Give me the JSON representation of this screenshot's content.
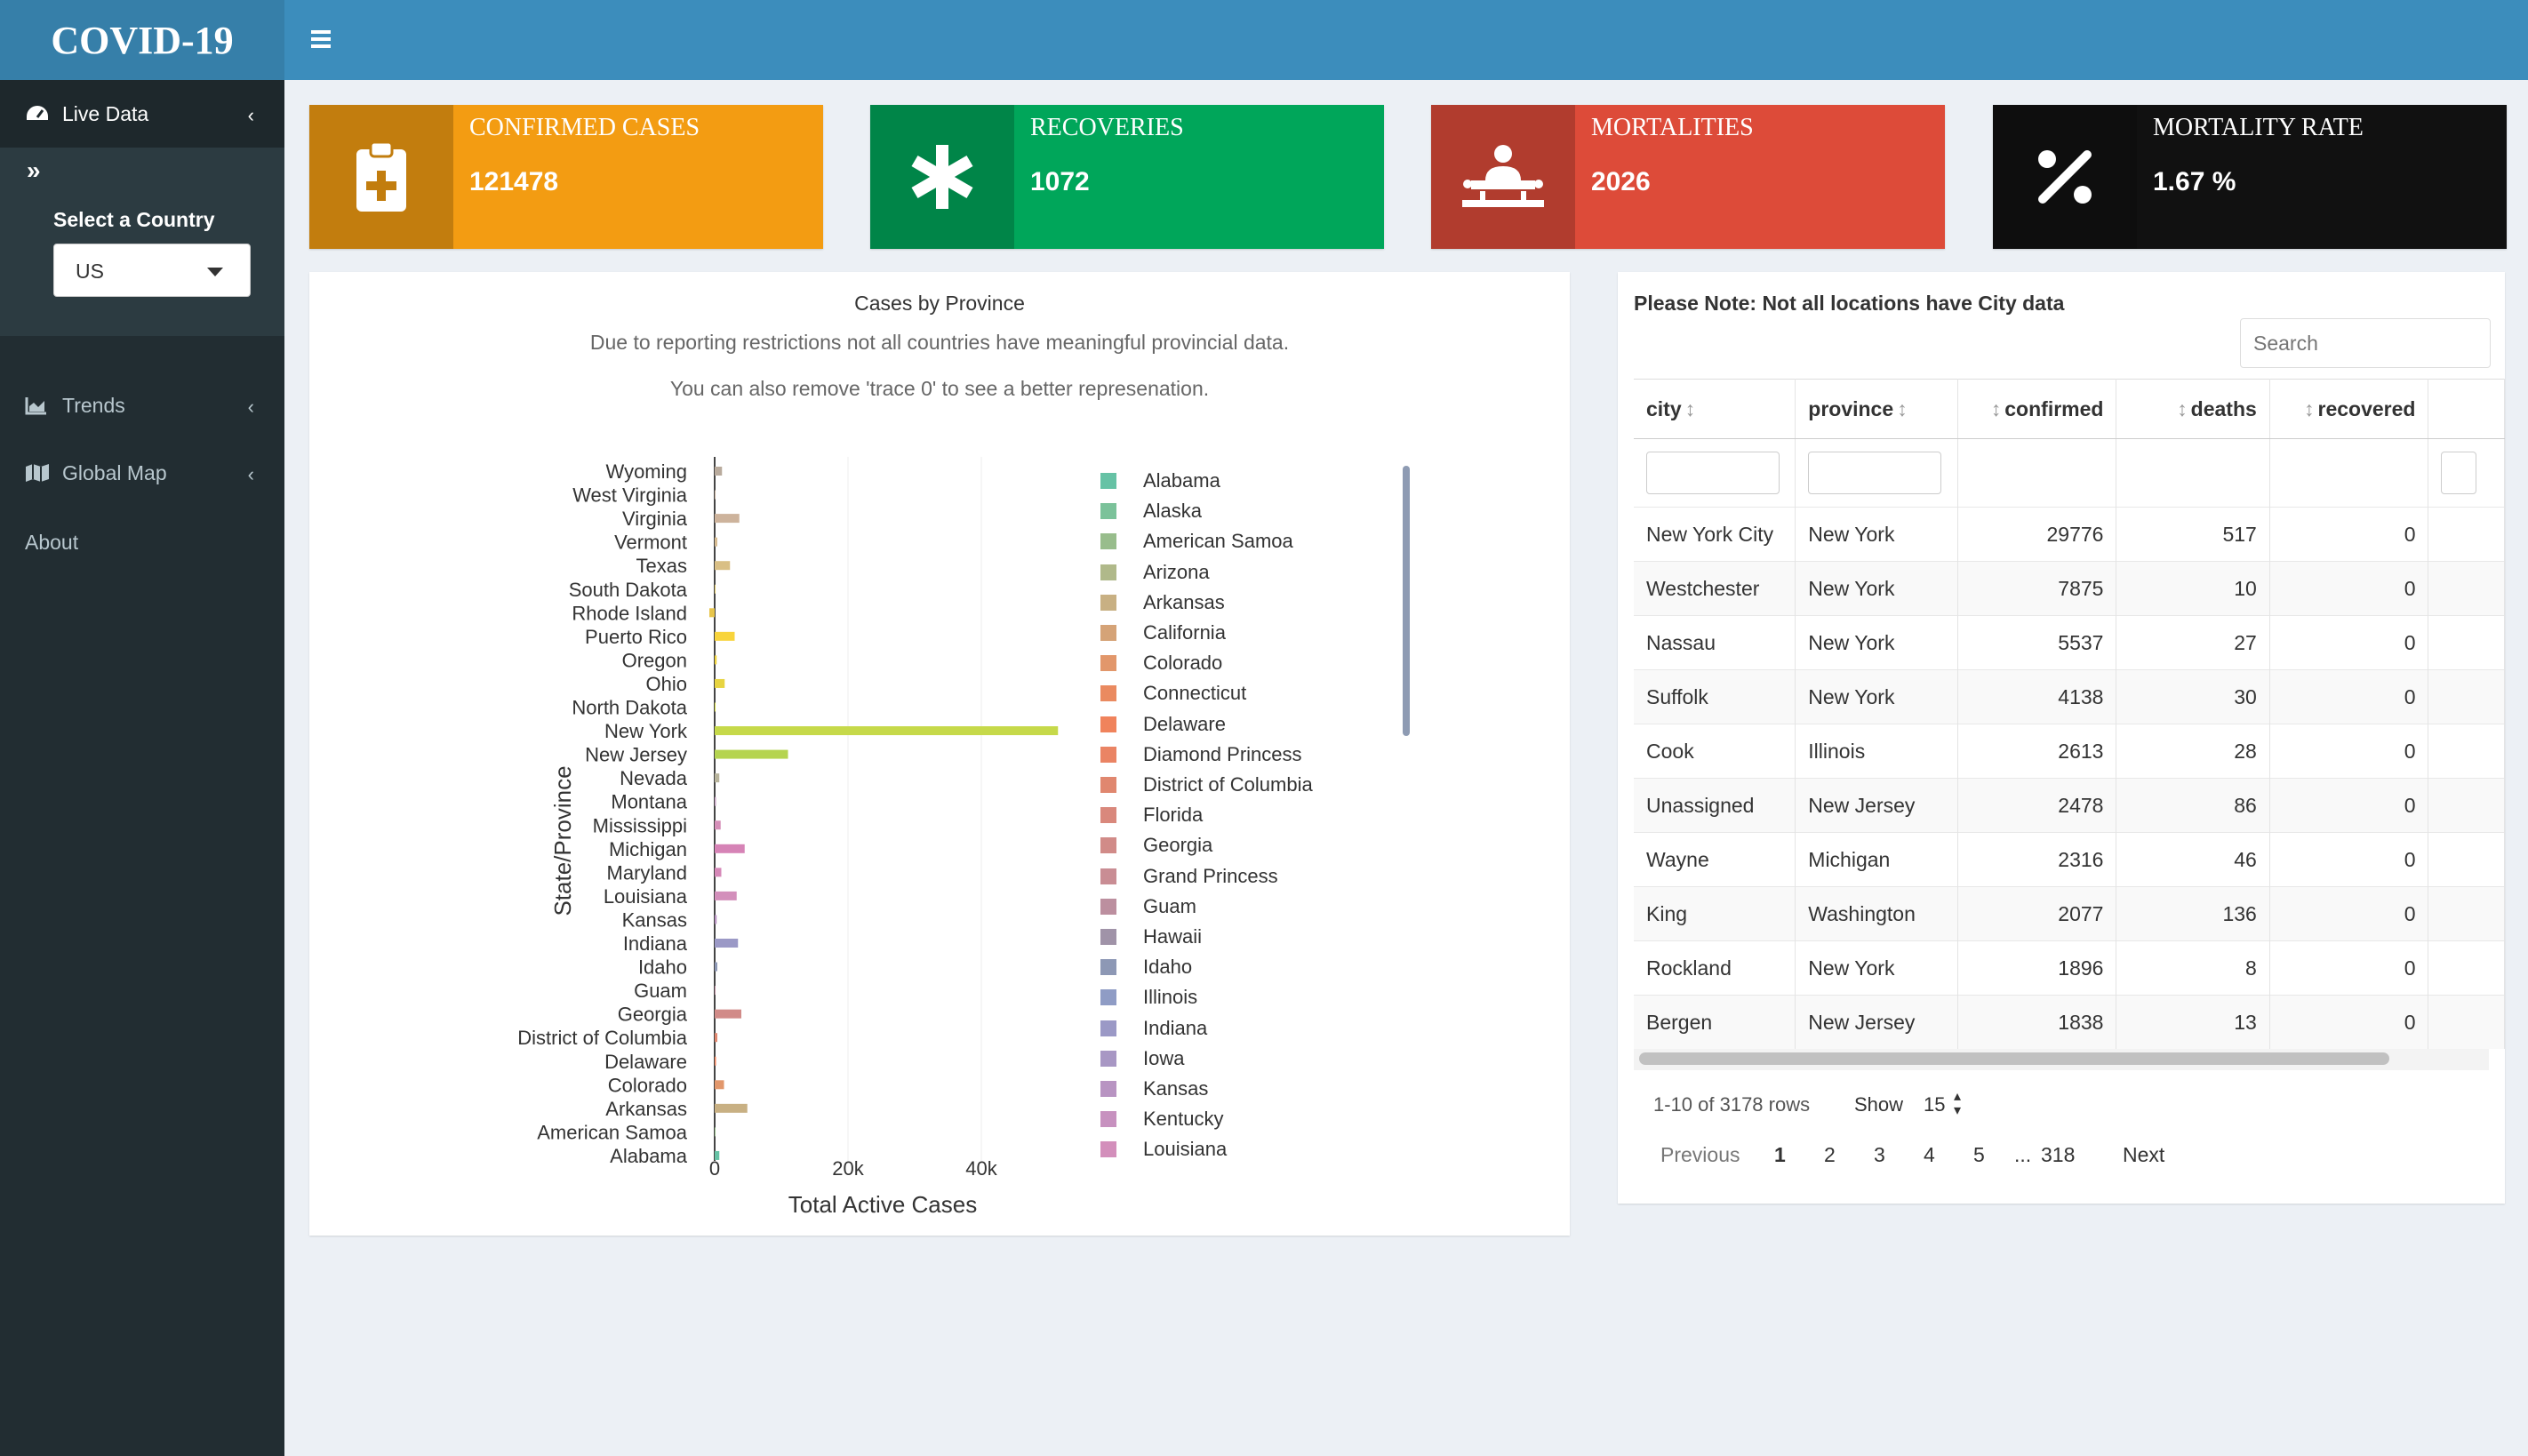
{
  "app": {
    "logo": "COVID-19"
  },
  "sidebar": {
    "live_data": "Live Data",
    "select_country_label": "Select a Country",
    "country": "US",
    "trends": "Trends",
    "global_map": "Global Map",
    "about": "About"
  },
  "valueboxes": {
    "confirmed": {
      "title": "CONFIRMED CASES",
      "value": "121478"
    },
    "recoveries": {
      "title": "RECOVERIES",
      "value": "1072"
    },
    "mortalities": {
      "title": "MORTALITIES",
      "value": "2026"
    },
    "rate": {
      "title": "MORTALITY RATE",
      "value": "1.67 %"
    }
  },
  "chart": {
    "title": "Cases by Province",
    "note1": "Due to reporting restrictions not all countries have meaningful provincial data.",
    "note2": "You can also remove 'trace 0' to see a better represenation."
  },
  "chart_data": {
    "type": "bar",
    "orientation": "horizontal",
    "xlabel": "Total Active Cases",
    "ylabel": "State/Province",
    "xlim": [
      0,
      60000
    ],
    "xticks": [
      "0",
      "20k",
      "40k"
    ],
    "categories": [
      "Alabama",
      "American Samoa",
      "Arkansas",
      "Colorado",
      "Delaware",
      "District of Columbia",
      "Georgia",
      "Guam",
      "Idaho",
      "Indiana",
      "Kansas",
      "Louisiana",
      "Maryland",
      "Michigan",
      "Mississippi",
      "Montana",
      "Nevada",
      "New Jersey",
      "New York",
      "North Dakota",
      "Ohio",
      "Oregon",
      "Puerto Rico",
      "Rhode Island",
      "South Dakota",
      "Texas",
      "Vermont",
      "Virginia",
      "West Virginia",
      "Wyoming"
    ],
    "values": [
      700,
      0,
      4900,
      1400,
      200,
      400,
      4000,
      50,
      400,
      3500,
      300,
      3300,
      1000,
      4500,
      900,
      200,
      700,
      11000,
      51500,
      100,
      1500,
      300,
      3000,
      -800,
      100,
      2300,
      400,
      3700,
      0,
      1100
    ],
    "legend": [
      "Alabama",
      "Alaska",
      "American Samoa",
      "Arizona",
      "Arkansas",
      "California",
      "Colorado",
      "Connecticut",
      "Delaware",
      "Diamond Princess",
      "District of Columbia",
      "Florida",
      "Georgia",
      "Grand Princess",
      "Guam",
      "Hawaii",
      "Idaho",
      "Illinois",
      "Indiana",
      "Iowa",
      "Kansas",
      "Kentucky",
      "Louisiana"
    ],
    "legend_colors": [
      "#66c2a5",
      "#7bc29a",
      "#98bd8c",
      "#b0b98a",
      "#c8b083",
      "#d5a377",
      "#e2976b",
      "#ea8a60",
      "#f0835c",
      "#ea8464",
      "#e0876f",
      "#d9887c",
      "#d18b88",
      "#c98d94",
      "#bc8f9f",
      "#a093a8",
      "#8d98b5",
      "#8f9cc5",
      "#9b99c6",
      "#a897c4",
      "#b894c2",
      "#c791bf",
      "#d38fbb"
    ],
    "bar_colors": [
      "#66c2a5",
      "#98bd8c",
      "#c8b083",
      "#e2976b",
      "#f0835c",
      "#e0876f",
      "#d18b88",
      "#bc8f9f",
      "#8d98b5",
      "#9b99c6",
      "#b894c2",
      "#d38fbb",
      "#d688b8",
      "#d683b6",
      "#d68fb9",
      "#c5a2c2",
      "#b8b49c",
      "#b5d44f",
      "#c6d94a",
      "#d8dd45",
      "#e7d441",
      "#f0d43f",
      "#f8d43c",
      "#e7c54b",
      "#e1c96a",
      "#d9bf85",
      "#d7bc92",
      "#cdb39c",
      "#c3ae9a",
      "#b9ab9d"
    ]
  },
  "table": {
    "note": "Please Note: Not all locations have City data",
    "search_placeholder": "Search",
    "columns": [
      "city",
      "province",
      "confirmed",
      "deaths",
      "recovered"
    ],
    "rows": [
      [
        "New York City",
        "New York",
        "29776",
        "517",
        "0"
      ],
      [
        "Westchester",
        "New York",
        "7875",
        "10",
        "0"
      ],
      [
        "Nassau",
        "New York",
        "5537",
        "27",
        "0"
      ],
      [
        "Suffolk",
        "New York",
        "4138",
        "30",
        "0"
      ],
      [
        "Cook",
        "Illinois",
        "2613",
        "28",
        "0"
      ],
      [
        "Unassigned",
        "New Jersey",
        "2478",
        "86",
        "0"
      ],
      [
        "Wayne",
        "Michigan",
        "2316",
        "46",
        "0"
      ],
      [
        "King",
        "Washington",
        "2077",
        "136",
        "0"
      ],
      [
        "Rockland",
        "New York",
        "1896",
        "8",
        "0"
      ],
      [
        "Bergen",
        "New Jersey",
        "1838",
        "13",
        "0"
      ]
    ],
    "rows_info": "1-10 of 3178 rows",
    "show_label": "Show",
    "page_size": "15",
    "pager": [
      "Previous",
      "1",
      "2",
      "3",
      "4",
      "5",
      "...",
      "318",
      "Next"
    ]
  }
}
